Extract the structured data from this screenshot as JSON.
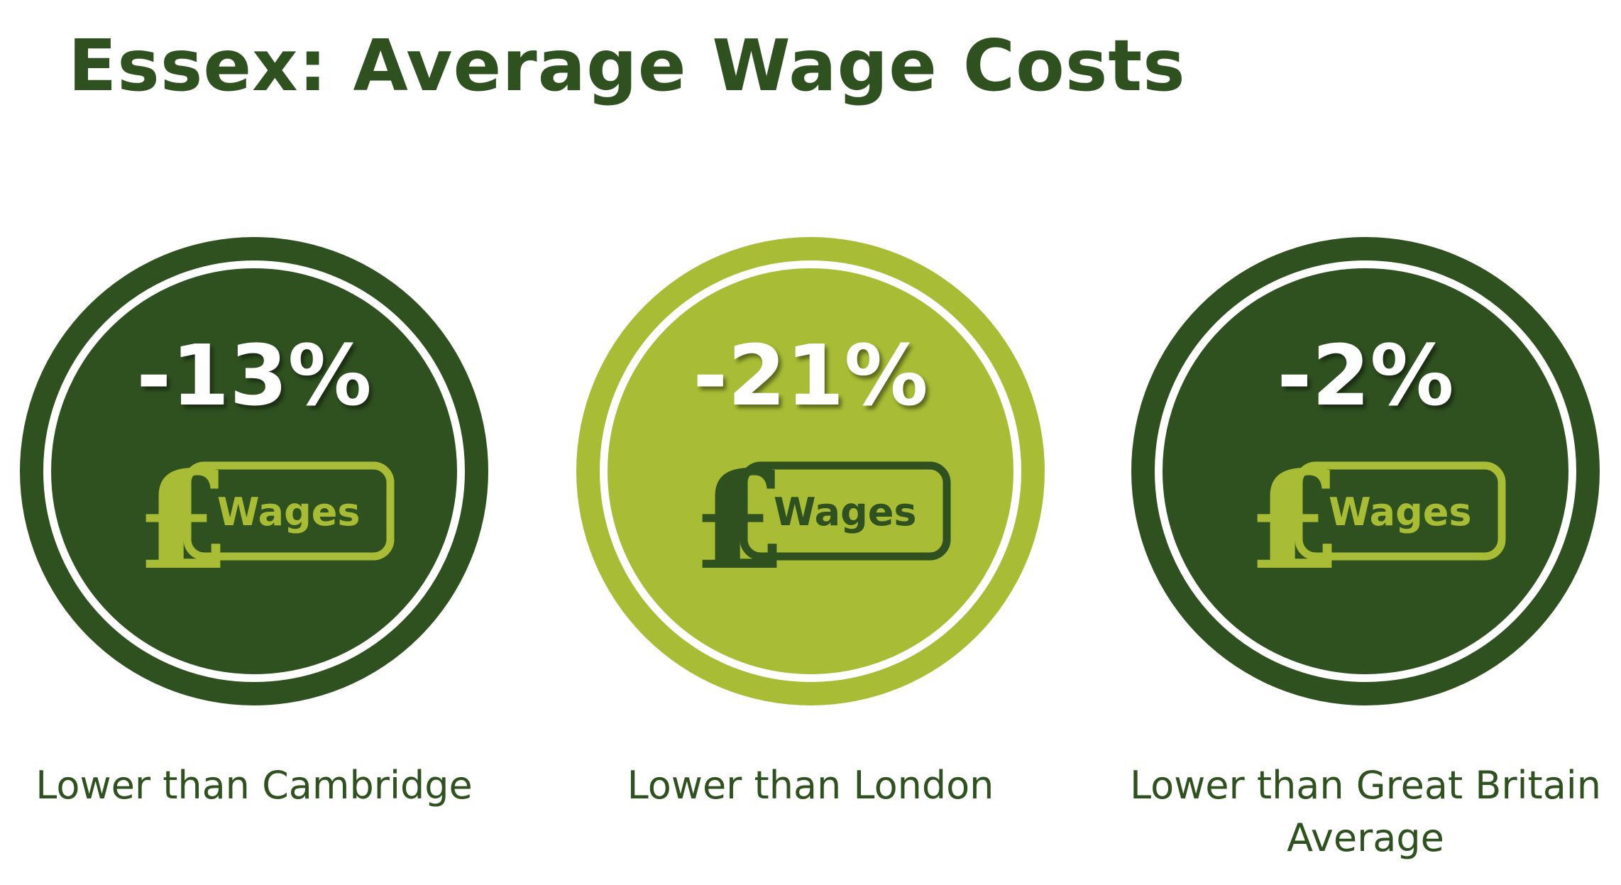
{
  "title": "Essex: Average Wage Costs",
  "colors": {
    "dark_green": "#2f5120",
    "light_green": "#a8bd35",
    "white": "#ffffff"
  },
  "badges": [
    {
      "value": "-13%",
      "icon_label": "Wages",
      "icon": "pound-wages-icon",
      "caption_line1": "Lower than Cambridge",
      "caption_line2": ""
    },
    {
      "value": "-21%",
      "icon_label": "Wages",
      "icon": "pound-wages-icon",
      "caption_line1": "Lower than London",
      "caption_line2": ""
    },
    {
      "value": "-2%",
      "icon_label": "Wages",
      "icon": "pound-wages-icon",
      "caption_line1": "Lower than Great Britain",
      "caption_line2": "Average"
    }
  ]
}
